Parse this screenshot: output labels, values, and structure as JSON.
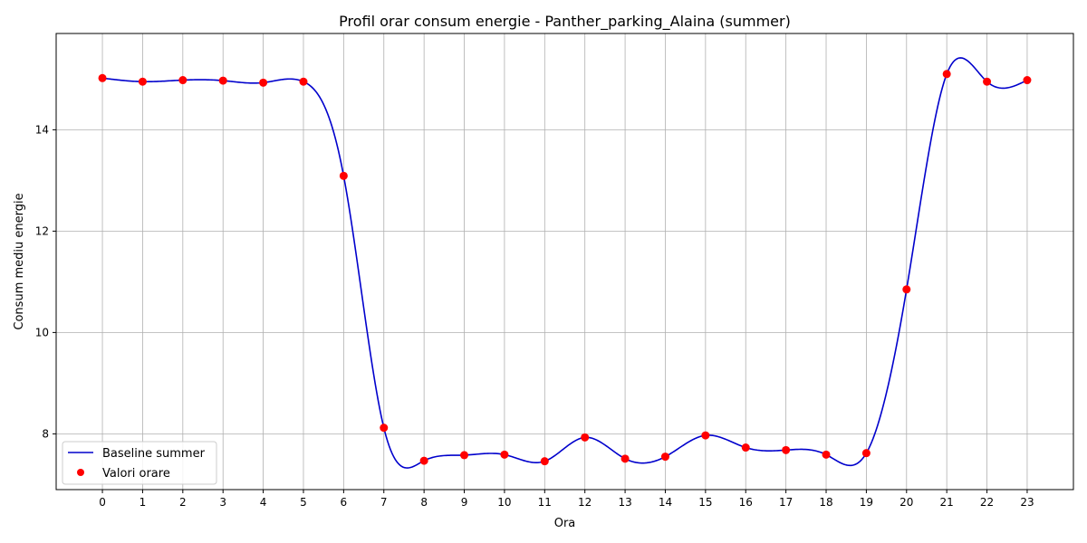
{
  "chart_data": {
    "type": "line",
    "title": "Profil orar consum energie - Panther_parking_Alaina (summer)",
    "xlabel": "Ora",
    "ylabel": "Consum mediu energie",
    "xlim": [
      -1.15,
      24.15
    ],
    "ylim": [
      6.9,
      15.9
    ],
    "x_ticks": [
      0,
      1,
      2,
      3,
      4,
      5,
      6,
      7,
      8,
      9,
      10,
      11,
      12,
      13,
      14,
      15,
      16,
      17,
      18,
      19,
      20,
      21,
      22,
      23
    ],
    "y_ticks": [
      8,
      10,
      12,
      14
    ],
    "grid": true,
    "legend_position": "lower-left",
    "series": [
      {
        "name": "Baseline summer",
        "kind": "line",
        "color": "#0000cc",
        "x": [
          0,
          1,
          2,
          3,
          4,
          5,
          6,
          7,
          8,
          9,
          10,
          11,
          12,
          13,
          14,
          15,
          16,
          17,
          18,
          19,
          20,
          21,
          22,
          23
        ],
        "values": [
          15.02,
          14.95,
          14.98,
          14.97,
          14.93,
          14.95,
          13.09,
          8.12,
          7.47,
          7.58,
          7.59,
          7.46,
          7.93,
          7.51,
          7.55,
          7.97,
          7.73,
          7.68,
          7.59,
          7.62,
          10.85,
          15.1,
          14.95,
          14.98
        ]
      },
      {
        "name": "Valori orare",
        "kind": "scatter",
        "color": "#ff0000",
        "x": [
          0,
          1,
          2,
          3,
          4,
          5,
          6,
          7,
          8,
          9,
          10,
          11,
          12,
          13,
          14,
          15,
          16,
          17,
          18,
          19,
          20,
          21,
          22,
          23
        ],
        "values": [
          15.02,
          14.95,
          14.98,
          14.97,
          14.93,
          14.95,
          13.09,
          8.12,
          7.47,
          7.58,
          7.59,
          7.46,
          7.93,
          7.51,
          7.55,
          7.97,
          7.73,
          7.68,
          7.59,
          7.62,
          10.85,
          15.1,
          14.95,
          14.98
        ]
      }
    ]
  }
}
